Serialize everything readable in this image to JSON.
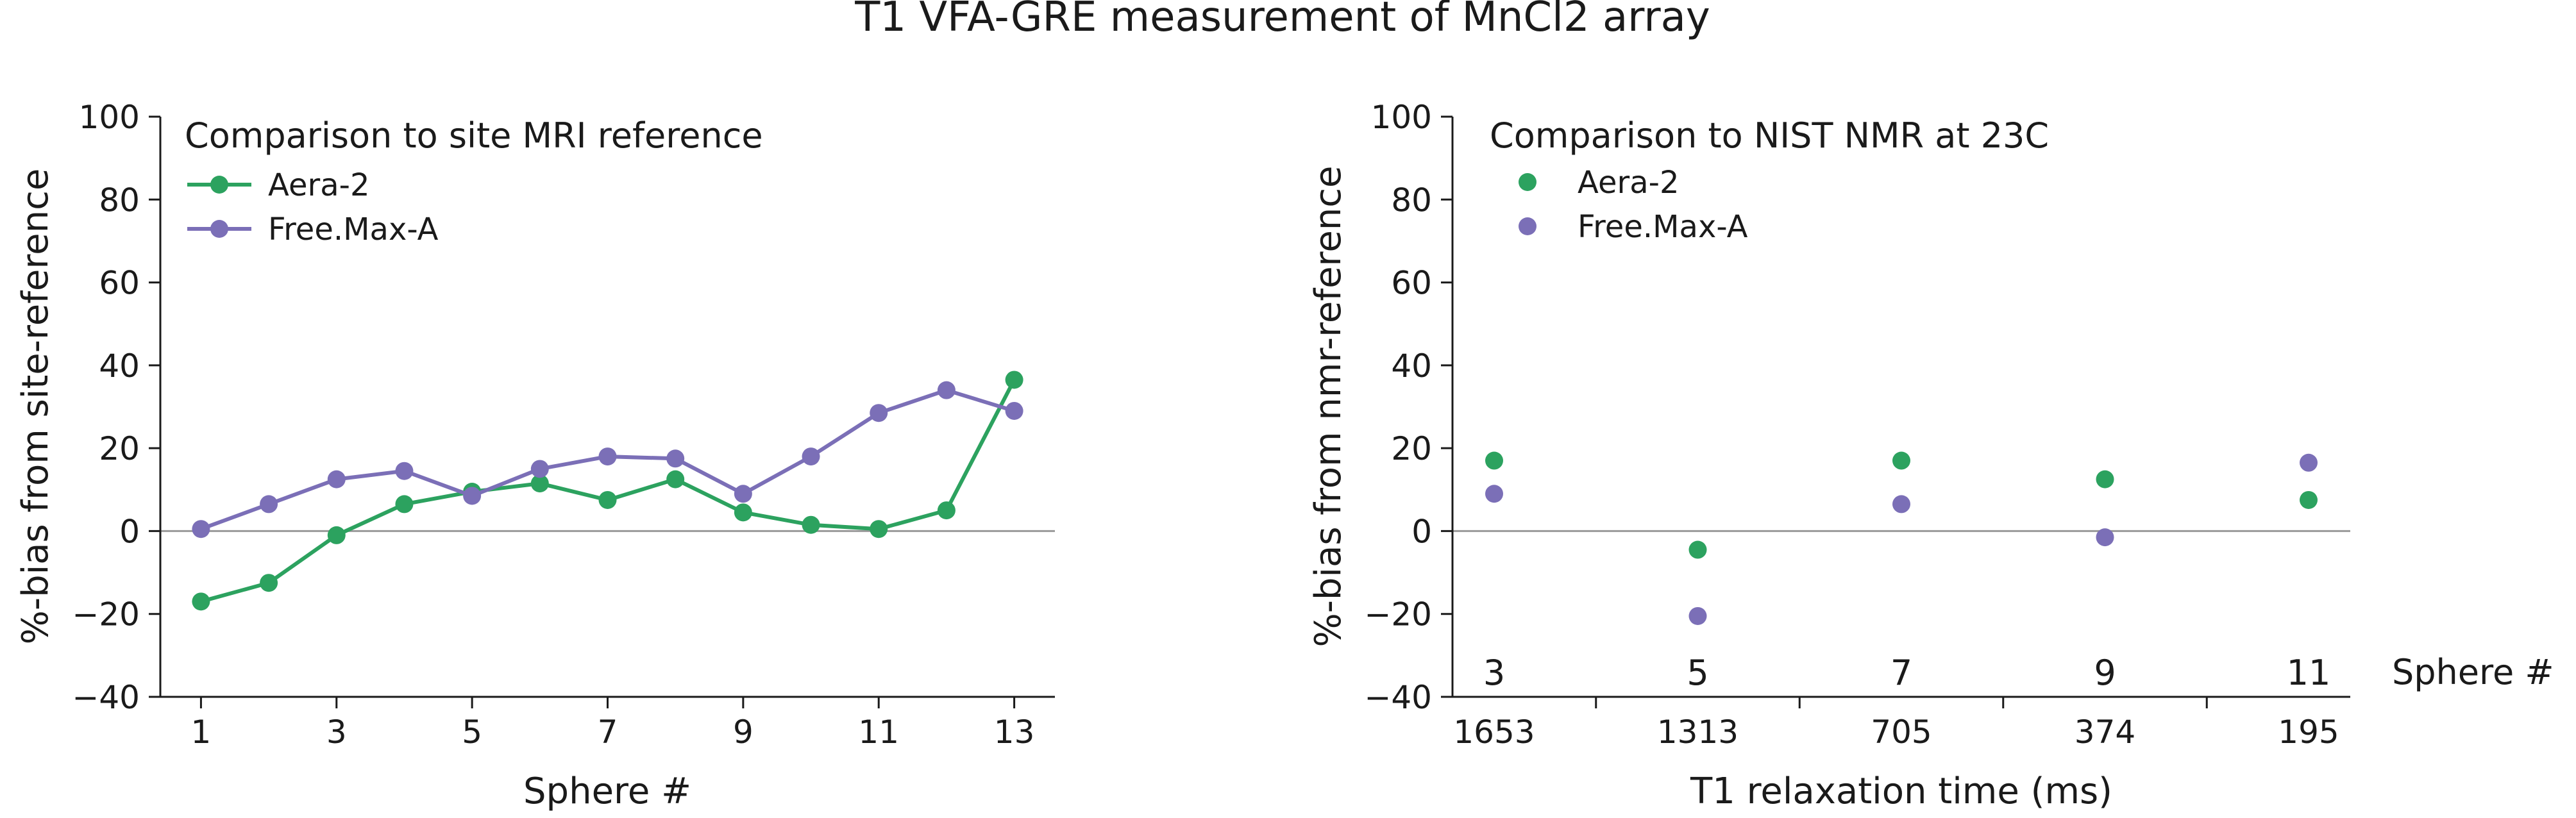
{
  "title": "T1 VFA-GRE measurement of MnCl2 array",
  "colors": {
    "aera": "#2ca25f",
    "freemax": "#7b6fb7",
    "zero_line": "#999999",
    "axis": "#1a1a1a"
  },
  "chart_data": [
    {
      "type": "line",
      "title": "",
      "legend_title": "Comparison to site MRI reference",
      "legend_position": "top-left",
      "xlabel": "Sphere #",
      "ylabel": "%-bias from site-reference",
      "xlim": [
        0.4,
        13.6
      ],
      "ylim": [
        -40,
        100
      ],
      "xticks": [
        1,
        3,
        5,
        7,
        9,
        11,
        13
      ],
      "yticks": [
        -40,
        -20,
        0,
        20,
        40,
        60,
        80,
        100
      ],
      "grid": false,
      "zero_line": true,
      "x": [
        1,
        2,
        3,
        4,
        5,
        6,
        7,
        8,
        9,
        10,
        11,
        12,
        13
      ],
      "series": [
        {
          "name": "Aera-2",
          "color": "#2ca25f",
          "values": [
            -17,
            -12.5,
            -1,
            6.5,
            9.5,
            11.5,
            7.5,
            12.5,
            4.5,
            1.5,
            0.5,
            5,
            36.5
          ]
        },
        {
          "name": "Free.Max-A",
          "color": "#7b6fb7",
          "values": [
            0.5,
            6.5,
            12.5,
            14.5,
            8.5,
            15,
            18,
            17.5,
            9,
            18,
            28.5,
            34,
            29
          ]
        }
      ]
    },
    {
      "type": "scatter",
      "title": "",
      "legend_title": "Comparison to NIST NMR at 23C",
      "legend_position": "top-left",
      "xlabel": "T1 relaxation time (ms)",
      "ylabel": "%-bias from nmr-reference",
      "secondary_xlabel": "Sphere #",
      "ylim": [
        -40,
        100
      ],
      "yticks": [
        -40,
        -20,
        0,
        20,
        40,
        60,
        80,
        100
      ],
      "grid": false,
      "zero_line": true,
      "categories": [
        "1653",
        "1313",
        "705",
        "374",
        "195"
      ],
      "sphere_labels": [
        "3",
        "5",
        "7",
        "9",
        "11"
      ],
      "series": [
        {
          "name": "Aera-2",
          "color": "#2ca25f",
          "values": [
            17,
            -4.5,
            17,
            12.5,
            7.5
          ]
        },
        {
          "name": "Free.Max-A",
          "color": "#7b6fb7",
          "values": [
            9,
            -20.5,
            6.5,
            -1.5,
            16.5
          ]
        }
      ]
    }
  ]
}
